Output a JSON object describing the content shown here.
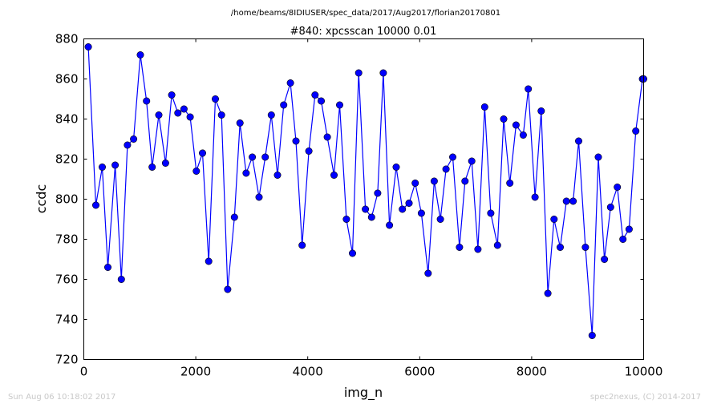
{
  "header": {
    "path": "/home/beams/8IDIUSER/spec_data/2017/Aug2017/florian20170801",
    "title": "#840: xpcsscan 10000 0.01"
  },
  "footer": {
    "timestamp": "Sun Aug 06 10:18:02 2017",
    "credit": "spec2nexus, (C) 2014-2017"
  },
  "colors": {
    "line": "#0000ff",
    "marker": "#0000ff",
    "frame": "#000000"
  },
  "chart_data": {
    "type": "line",
    "title": "#840: xpcsscan 10000 0.01",
    "xlabel": "img_n",
    "ylabel": "ccdc",
    "xlim": [
      0,
      10000
    ],
    "ylim": [
      720,
      880
    ],
    "xticks": [
      0,
      2000,
      4000,
      6000,
      8000,
      10000
    ],
    "yticks": [
      720,
      740,
      760,
      780,
      800,
      820,
      840,
      860,
      880
    ],
    "grid": false,
    "markers": "circle",
    "series": [
      {
        "x": [
          80,
          215,
          330,
          430,
          560,
          670,
          780,
          890,
          1010,
          1120,
          1220,
          1340,
          1460,
          1570,
          1680,
          1790,
          1900,
          2010,
          2120,
          2230,
          2350,
          2460,
          2570,
          2690,
          2790,
          2900,
          3010,
          3130,
          3240,
          3350,
          3460,
          3570,
          3690,
          3790,
          3900,
          4020,
          4130,
          4240,
          4350,
          4470,
          4570,
          4690,
          4800,
          4910,
          5030,
          5140,
          5250,
          5350,
          5460,
          5580,
          5690,
          5810,
          5920,
          6030,
          6150,
          6260,
          6370,
          6470,
          6590,
          6710,
          6810,
          6930,
          7040,
          7160,
          7270,
          7390,
          7500,
          7610,
          7720,
          7850,
          7940,
          8060,
          8170,
          8290,
          8400,
          8510,
          8620,
          8740,
          8840,
          8960,
          9080,
          9190,
          9300,
          9410,
          9530,
          9630,
          9740,
          9860,
          9980,
          10000
        ],
        "y": [
          876,
          797,
          816,
          766,
          817,
          760,
          827,
          830,
          872,
          849,
          816,
          842,
          818,
          852,
          843,
          845,
          841,
          814,
          823,
          769,
          850,
          842,
          755,
          791,
          838,
          813,
          821,
          801,
          821,
          842,
          812,
          847,
          858,
          829,
          777,
          824,
          852,
          849,
          831,
          812,
          847,
          790,
          773,
          863,
          795,
          791,
          803,
          863,
          787,
          816,
          795,
          798,
          808,
          793,
          763,
          809,
          790,
          815,
          821,
          776,
          809,
          819,
          775,
          846,
          793,
          777,
          840,
          808,
          837,
          832,
          855,
          801,
          844,
          753,
          790,
          776,
          799,
          799,
          829,
          776,
          732,
          821,
          770,
          796,
          806,
          780,
          785,
          834,
          860,
          860
        ]
      }
    ]
  }
}
